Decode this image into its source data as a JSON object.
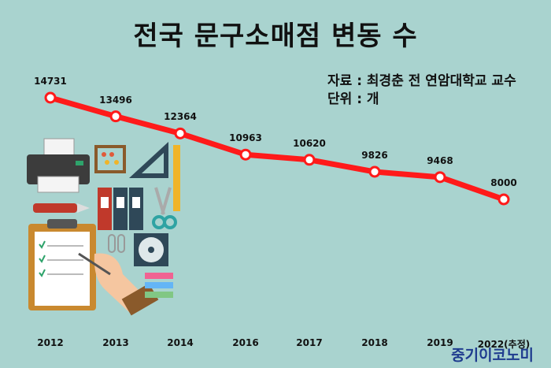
{
  "title": "전국 문구소매점 변동 수",
  "source_line": "자료 : 최경춘 전 연암대학교 교수",
  "unit_line": "단위 : 개",
  "brand": "중기이코노미",
  "colors": {
    "background": "#a9d3cf",
    "line": "#ff1a1a",
    "marker_fill": "#ffffff"
  },
  "chart_data": {
    "type": "line",
    "title": "전국 문구소매점 변동 수",
    "categories": [
      "2012",
      "2013",
      "2014",
      "2016",
      "2017",
      "2018",
      "2019",
      "2022(추정)"
    ],
    "series": [
      {
        "values": [
          14731,
          13496,
          12364,
          10963,
          10620,
          9826,
          9468,
          8000
        ]
      }
    ],
    "data_labels": [
      "14731",
      "13496",
      "12364",
      "10963",
      "10620",
      "9826",
      "9468",
      "8000"
    ],
    "unit": "개",
    "grid": false,
    "legend": "none"
  }
}
